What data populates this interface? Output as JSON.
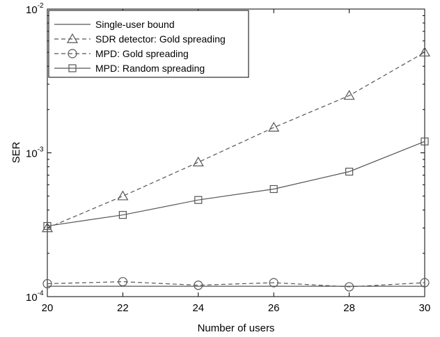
{
  "chart_data": {
    "type": "line",
    "xlabel": "Number of users",
    "ylabel": "SER",
    "x": [
      20,
      22,
      24,
      26,
      28,
      30
    ],
    "xlim": [
      20,
      30
    ],
    "ylim": [
      0.0001,
      0.01
    ],
    "yscale": "log",
    "xticks": [
      "20",
      "22",
      "24",
      "26",
      "28",
      "30"
    ],
    "yticks": [
      {
        "base": "10",
        "exp": "-4",
        "value": 0.0001
      },
      {
        "base": "10",
        "exp": "-3",
        "value": 0.001
      },
      {
        "base": "10",
        "exp": "-2",
        "value": 0.01
      }
    ],
    "grid": false,
    "legend_position": "top-left",
    "series": [
      {
        "name": "Single-user bound",
        "style": "solid",
        "marker": "none",
        "values": [
          0.000118,
          0.000118,
          0.000118,
          0.000118,
          0.000118,
          0.000118
        ]
      },
      {
        "name": "SDR detector: Gold spreading",
        "style": "dashed",
        "marker": "triangle",
        "values": [
          0.0003,
          0.0005,
          0.00086,
          0.0015,
          0.0025,
          0.005
        ]
      },
      {
        "name": "MPD: Gold spreading",
        "style": "dashed",
        "marker": "circle",
        "values": [
          0.000123,
          0.000127,
          0.00012,
          0.000125,
          0.000117,
          0.000125
        ]
      },
      {
        "name": "MPD: Random spreading",
        "style": "solid",
        "marker": "square",
        "values": [
          0.00031,
          0.00037,
          0.00047,
          0.00056,
          0.00074,
          0.0012
        ]
      }
    ],
    "colors": {
      "line": "#555555",
      "axis": "#000000",
      "background": "#ffffff"
    }
  }
}
